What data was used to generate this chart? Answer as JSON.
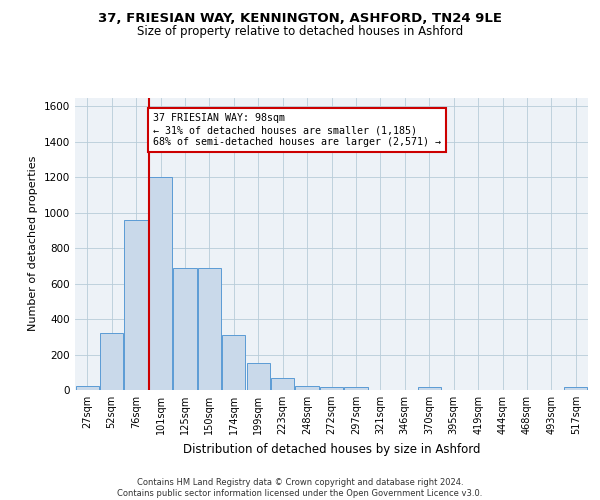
{
  "title1": "37, FRIESIAN WAY, KENNINGTON, ASHFORD, TN24 9LE",
  "title2": "Size of property relative to detached houses in Ashford",
  "xlabel": "Distribution of detached houses by size in Ashford",
  "ylabel": "Number of detached properties",
  "categories": [
    "27sqm",
    "52sqm",
    "76sqm",
    "101sqm",
    "125sqm",
    "150sqm",
    "174sqm",
    "199sqm",
    "223sqm",
    "248sqm",
    "272sqm",
    "297sqm",
    "321sqm",
    "346sqm",
    "370sqm",
    "395sqm",
    "419sqm",
    "444sqm",
    "468sqm",
    "493sqm",
    "517sqm"
  ],
  "values": [
    25,
    320,
    960,
    1200,
    690,
    690,
    310,
    155,
    65,
    25,
    15,
    15,
    0,
    0,
    15,
    0,
    0,
    0,
    0,
    0,
    15
  ],
  "bar_color": "#c9d9ea",
  "bar_edge_color": "#5b9bd5",
  "property_line_color": "#cc0000",
  "annotation_text": "37 FRIESIAN WAY: 98sqm\n← 31% of detached houses are smaller (1,185)\n68% of semi-detached houses are larger (2,571) →",
  "annotation_box_color": "#ffffff",
  "annotation_box_edge_color": "#cc0000",
  "ylim": [
    0,
    1650
  ],
  "yticks": [
    0,
    200,
    400,
    600,
    800,
    1000,
    1200,
    1400,
    1600
  ],
  "background_color": "#edf2f7",
  "footer": "Contains HM Land Registry data © Crown copyright and database right 2024.\nContains public sector information licensed under the Open Government Licence v3.0."
}
